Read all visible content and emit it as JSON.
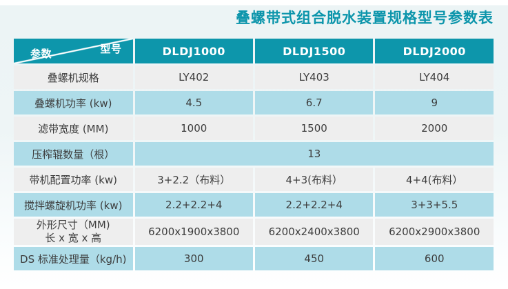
{
  "title": "叠螺带式组合脱水装置规格型号参数表",
  "colors": {
    "header_teal": "#0d96ab",
    "row_blue": "#aedce8",
    "row_gray": "#eeeeee",
    "title_text": "#0c95ab",
    "body_text": "#3d3d3d"
  },
  "table": {
    "corner": {
      "param_label": "参数",
      "model_label": "型号"
    },
    "columns": [
      "DLDJ1000",
      "DLDJ1500",
      "DLDJ2000"
    ],
    "rows": [
      {
        "label": "叠螺机规格",
        "values": [
          "LY402",
          "LY403",
          "LY404"
        ]
      },
      {
        "label": "叠螺机功率 (kw)",
        "values": [
          "4.5",
          "6.7",
          "9"
        ]
      },
      {
        "label": "滤带宽度 (MM)",
        "values": [
          "1000",
          "1500",
          "2000"
        ]
      },
      {
        "label": "压榨辊数量（根）",
        "values": [
          "13"
        ],
        "colspan": 3
      },
      {
        "label": "带机配置功率 (kw)",
        "values": [
          "3+2.2（布料）",
          "4+3(布料）",
          "4+4(布料）"
        ]
      },
      {
        "label": "搅拌螺旋机功率 (kw)",
        "values": [
          "2.2+2.2+4",
          "2.2+2.2+4",
          "3+3+5.5"
        ]
      },
      {
        "label": "外形尺寸（MM)",
        "label2": "长 x 宽 x 高",
        "values": [
          "6200x1900x3800",
          "6200x2400x3800",
          "6200x2900x3800"
        ],
        "tall": true
      },
      {
        "label": "DS 标准处理量（kg/h)",
        "values": [
          "300",
          "450",
          "600"
        ]
      }
    ]
  }
}
